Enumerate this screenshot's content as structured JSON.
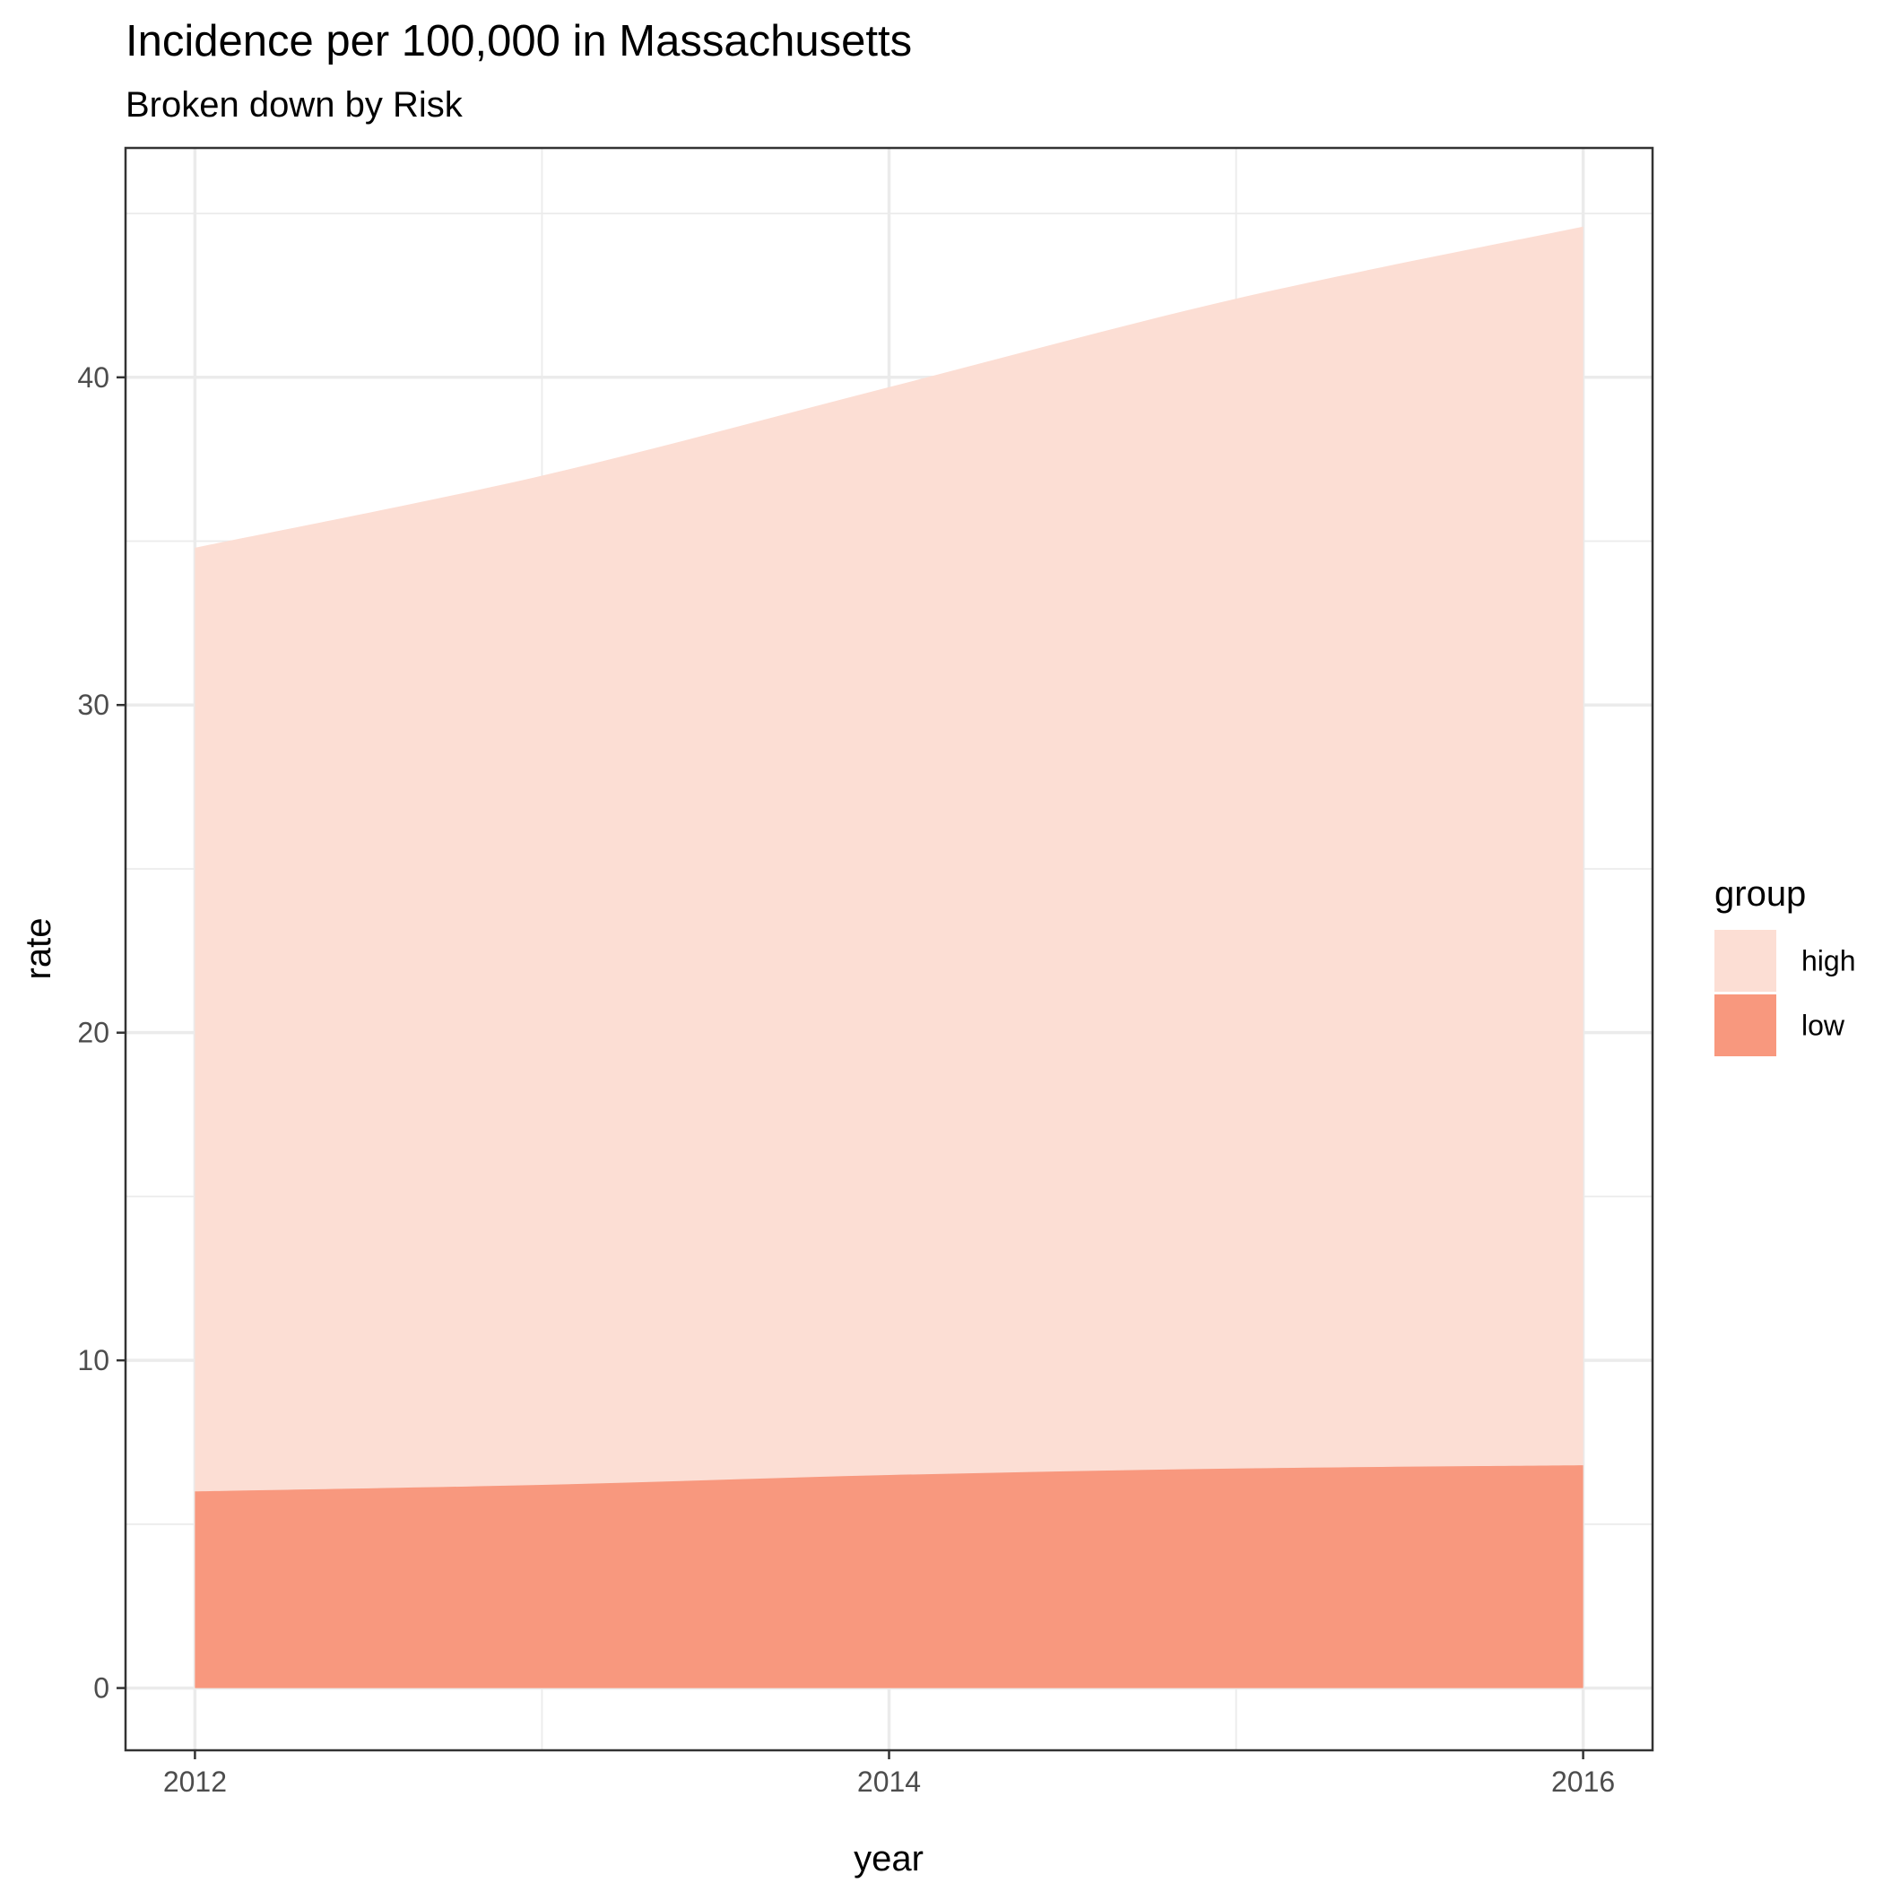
{
  "chart_data": {
    "type": "area",
    "title": "Incidence per 100,000 in Massachusetts",
    "subtitle": "Broken down by Risk",
    "xlabel": "year",
    "ylabel": "rate",
    "x": [
      2012,
      2013,
      2014,
      2015,
      2016
    ],
    "xlim": [
      2011.8,
      2016.2
    ],
    "ylim": [
      -1.9,
      47.0
    ],
    "x_ticks": [
      2012,
      2014,
      2016
    ],
    "x_tick_labels": [
      "2012",
      "2014",
      "2016"
    ],
    "x_minor": [
      2013,
      2015
    ],
    "y_ticks": [
      0,
      10,
      20,
      30,
      40
    ],
    "y_tick_labels": [
      "0",
      "10",
      "20",
      "30",
      "40"
    ],
    "y_minor": [
      5,
      15,
      25,
      35,
      45
    ],
    "stacked": false,
    "grid": true,
    "legend": {
      "title": "group",
      "position": "right"
    },
    "series": [
      {
        "name": "high",
        "color": "#FCDED4",
        "values": [
          34.8,
          37.0,
          39.7,
          42.4,
          44.6
        ]
      },
      {
        "name": "low",
        "color": "#F8987E",
        "values": [
          6.0,
          6.2,
          6.5,
          6.7,
          6.8
        ]
      }
    ]
  }
}
